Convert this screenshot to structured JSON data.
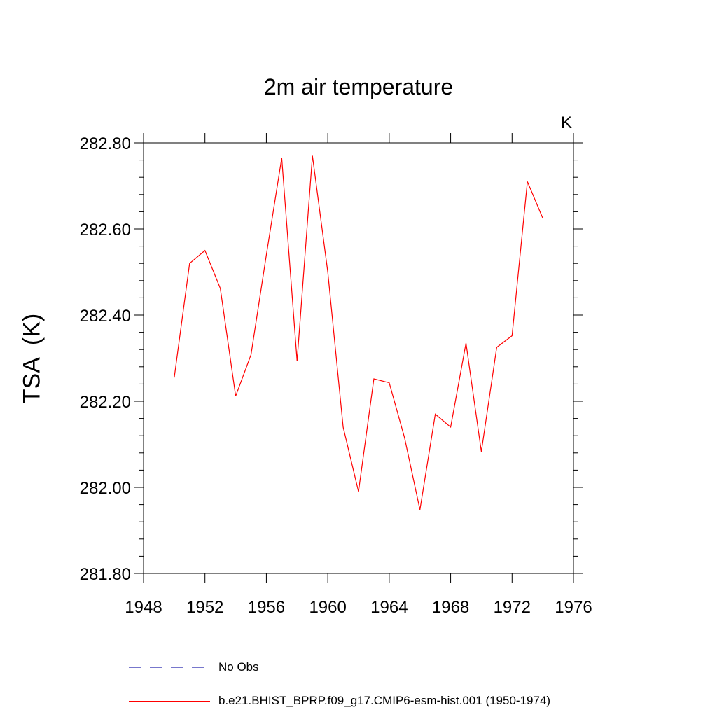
{
  "chart_data": {
    "type": "line",
    "title": "2m air temperature",
    "units": "K",
    "ylabel": "TSA  (K)",
    "xlabel": "",
    "xlim": [
      1948,
      1976
    ],
    "ylim": [
      281.8,
      282.8
    ],
    "xticks": [
      1948,
      1952,
      1956,
      1960,
      1964,
      1968,
      1972,
      1976
    ],
    "yticks": [
      "281.80",
      "282.00",
      "282.20",
      "282.40",
      "282.60",
      "282.80"
    ],
    "series": [
      {
        "name": "b.e21.BHIST_BPRP.f09_g17.CMIP6-esm-hist.001 (1950-1974)",
        "color": "#ff0000",
        "style": "solid",
        "x": [
          1950,
          1951,
          1952,
          1953,
          1954,
          1955,
          1956,
          1957,
          1958,
          1959,
          1960,
          1961,
          1962,
          1963,
          1964,
          1965,
          1966,
          1967,
          1968,
          1969,
          1970,
          1971,
          1972,
          1973,
          1974
        ],
        "values": [
          282.255,
          282.52,
          282.55,
          282.462,
          282.212,
          282.308,
          282.54,
          282.765,
          282.293,
          282.77,
          282.5,
          282.14,
          281.99,
          282.252,
          282.243,
          282.115,
          281.948,
          282.17,
          282.14,
          282.335,
          282.083,
          282.325,
          282.352,
          282.71,
          282.625
        ]
      }
    ],
    "legend": [
      {
        "label": "No Obs",
        "style": "dashed",
        "color": "#7777cc"
      },
      {
        "label": "b.e21.BHIST_BPRP.f09_g17.CMIP6-esm-hist.001 (1950-1974)",
        "style": "solid",
        "color": "#ff0000"
      }
    ]
  }
}
